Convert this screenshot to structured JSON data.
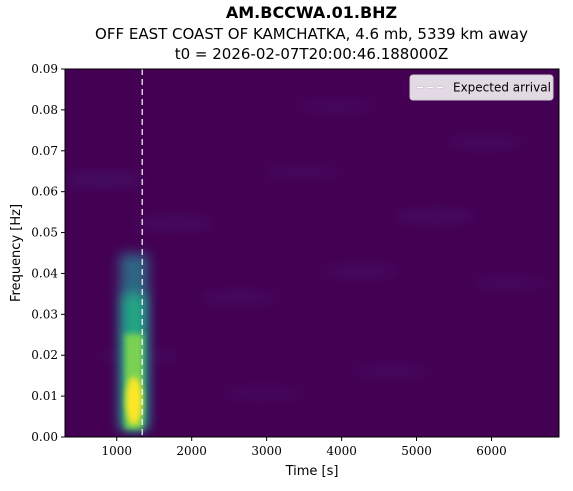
{
  "chart_data": {
    "type": "heatmap",
    "title": "AM.BCCWA.01.BHZ",
    "subtitle": "OFF EAST COAST OF KAMCHATKA, 4.6 mb, 5339 km away",
    "subtitle2": "t0 = 2026-02-07T20:00:46.188000Z",
    "xlabel": "Time [s]",
    "ylabel": "Frequency [Hz]",
    "xlim": [
      310,
      6900
    ],
    "ylim": [
      0,
      0.09
    ],
    "x_ticks": [
      1000,
      2000,
      3000,
      4000,
      5000,
      6000
    ],
    "x_tick_labels": [
      "1000",
      "2000",
      "3000",
      "4000",
      "5000",
      "6000"
    ],
    "y_ticks": [
      0,
      0.01,
      0.02,
      0.03,
      0.04,
      0.05,
      0.06,
      0.07,
      0.08,
      0.09
    ],
    "y_tick_labels": [
      "0.00",
      "0.01",
      "0.02",
      "0.03",
      "0.04",
      "0.05",
      "0.06",
      "0.07",
      "0.08",
      "0.09"
    ],
    "colormap": "viridis",
    "expected_arrival": 1340,
    "legend": {
      "label": "Expected arrival",
      "placement": "top-right"
    },
    "energy_peak": {
      "time": 1230,
      "freq_min": 0.002,
      "freq_max": 0.035
    }
  }
}
